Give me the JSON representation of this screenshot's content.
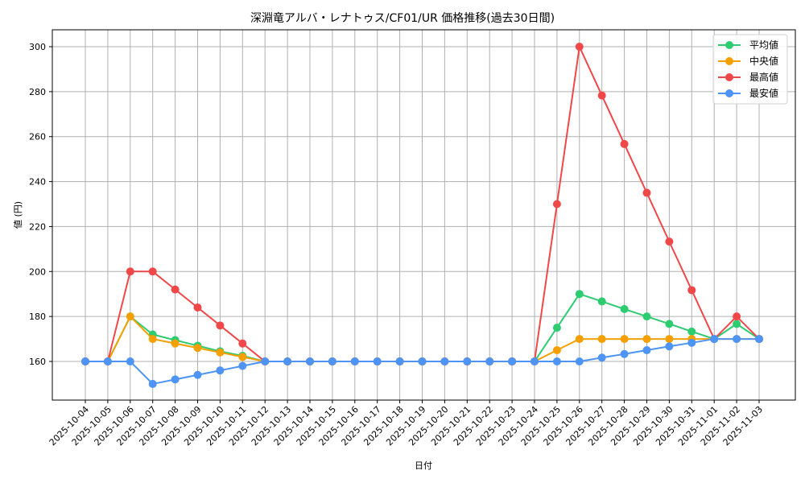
{
  "chart_data": {
    "type": "line",
    "title": "深淵竜アルバ・レナトゥス/CF01/UR 価格推移(過去30日間)",
    "xlabel": "日付",
    "ylabel": "値 (円)",
    "ylim": [
      142.8,
      307.5
    ],
    "yticks": [
      160,
      180,
      200,
      220,
      240,
      260,
      280,
      300
    ],
    "grid": true,
    "legend_position": "upper right",
    "categories": [
      "2025-10-04",
      "2025-10-05",
      "2025-10-06",
      "2025-10-07",
      "2025-10-08",
      "2025-10-09",
      "2025-10-10",
      "2025-10-11",
      "2025-10-12",
      "2025-10-13",
      "2025-10-14",
      "2025-10-15",
      "2025-10-16",
      "2025-10-17",
      "2025-10-18",
      "2025-10-19",
      "2025-10-20",
      "2025-10-21",
      "2025-10-22",
      "2025-10-23",
      "2025-10-24",
      "2025-10-25",
      "2025-10-26",
      "2025-10-27",
      "2025-10-28",
      "2025-10-29",
      "2025-10-30",
      "2025-10-31",
      "2025-11-01",
      "2025-11-02",
      "2025-11-03"
    ],
    "series": [
      {
        "name": "平均値",
        "color": "#2ecc71",
        "values": [
          160,
          160,
          180,
          172,
          169.5,
          167,
          164.5,
          162.5,
          160,
          160,
          160,
          160,
          160,
          160,
          160,
          160,
          160,
          160,
          160,
          160,
          160,
          175,
          190,
          186.7,
          183.3,
          180,
          176.7,
          173.3,
          170,
          176.7,
          170
        ]
      },
      {
        "name": "中央値",
        "color": "#f5a000",
        "values": [
          160,
          160,
          180,
          170,
          168,
          166,
          164,
          162,
          160,
          160,
          160,
          160,
          160,
          160,
          160,
          160,
          160,
          160,
          160,
          160,
          160,
          165,
          170,
          170,
          170,
          170,
          170,
          170,
          170,
          170,
          170
        ]
      },
      {
        "name": "最高値",
        "color": "#f04848",
        "values": [
          160,
          160,
          200,
          200,
          192,
          184,
          176,
          168,
          160,
          160,
          160,
          160,
          160,
          160,
          160,
          160,
          160,
          160,
          160,
          160,
          160,
          230,
          300,
          278.3,
          256.7,
          235,
          213.3,
          191.7,
          170,
          180,
          170
        ]
      },
      {
        "name": "最安値",
        "color": "#4d94f5",
        "values": [
          160,
          160,
          160,
          150,
          152,
          154,
          156,
          158,
          160,
          160,
          160,
          160,
          160,
          160,
          160,
          160,
          160,
          160,
          160,
          160,
          160,
          160,
          160,
          161.7,
          163.3,
          165,
          166.7,
          168.3,
          170,
          170,
          170
        ]
      }
    ]
  }
}
